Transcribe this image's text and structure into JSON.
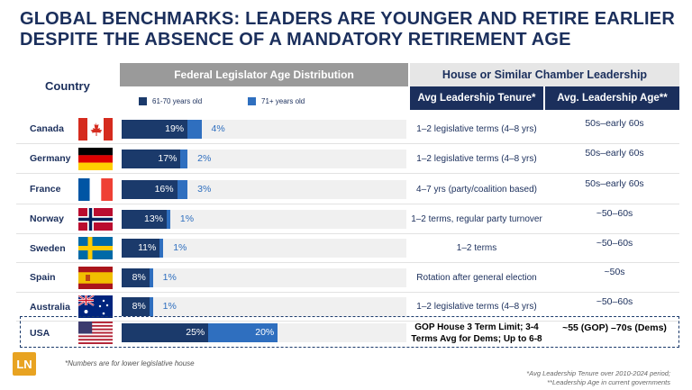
{
  "title": "GLOBAL BENCHMARKS: LEADERS ARE YOUNGER AND RETIRE EARLIER DESPITE THE ABSENCE OF A MANDATORY RETIREMENT AGE",
  "headers": {
    "country": "Country",
    "distribution": "Federal Legislator Age Distribution",
    "leadership": "House or Similar Chamber Leadership",
    "tenure": "Avg Leadership Tenure*",
    "age": "Avg. Leadership Age**"
  },
  "colors": {
    "age_61_70": "#1b3a6b",
    "age_71_plus": "#2f6fbf",
    "navy": "#1b2f5c",
    "logo": "#e8a321"
  },
  "chart_data": {
    "type": "bar",
    "stacked": true,
    "orientation": "horizontal",
    "categories": [
      "Canada",
      "Germany",
      "France",
      "Norway",
      "Sweden",
      "Spain",
      "Australia",
      "USA"
    ],
    "series": [
      {
        "name": "61-70 years old",
        "values": [
          19,
          17,
          16,
          13,
          11,
          8,
          8,
          25
        ]
      },
      {
        "name": "71+  years old",
        "values": [
          4,
          2,
          3,
          1,
          1,
          1,
          1,
          20
        ]
      }
    ],
    "value_format": "percent",
    "legend_position": "top"
  },
  "rows": [
    {
      "country": "Canada",
      "flag": "canada-flag",
      "tenure": "1–2 legislative terms (4–8 yrs)",
      "age": "50s–early 60s"
    },
    {
      "country": "Germany",
      "flag": "germany-flag",
      "tenure": "1–2 legislative terms (4–8 yrs)",
      "age": "50s–early 60s"
    },
    {
      "country": "France",
      "flag": "france-flag",
      "tenure": "4–7 yrs (party/coalition based)",
      "age": "50s–early 60s"
    },
    {
      "country": "Norway",
      "flag": "norway-flag",
      "tenure": "1–2 terms, regular party turnover",
      "age": "~50–60s"
    },
    {
      "country": "Sweden",
      "flag": "sweden-flag",
      "tenure": "1–2 terms",
      "age": "~50–60s"
    },
    {
      "country": "Spain",
      "flag": "spain-flag",
      "tenure": "Rotation after general election",
      "age": "~50s"
    },
    {
      "country": "Australia",
      "flag": "australia-flag",
      "tenure": "1–2 legislative terms (4–8 yrs)",
      "age": "~50–60s"
    },
    {
      "country": "USA",
      "flag": "usa-flag",
      "tenure": "GOP House 3 Term Limit; 3-4 Terms Avg for Dems; Up to 6-8",
      "age": "~55 (GOP) –70s (Dems)"
    }
  ],
  "logo": "LN",
  "footnote_left": "*Numbers are for lower legislative house",
  "footnote_right_1": "*Avg Leadership Tenure over 2010-2024 period;",
  "footnote_right_2": "**Leadership Age in current governments"
}
